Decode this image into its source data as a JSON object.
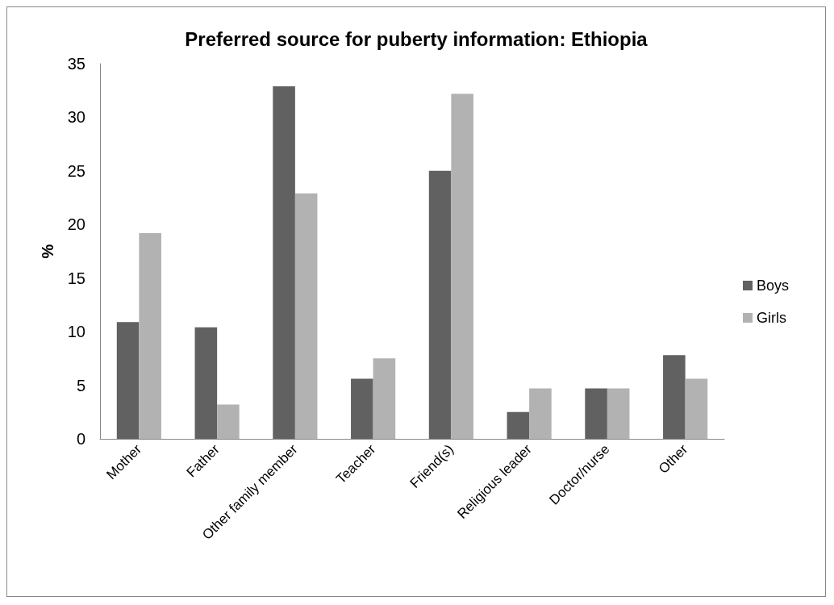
{
  "chart_data": {
    "type": "bar",
    "title": "Preferred source for puberty information: Ethiopia",
    "ylabel": "%",
    "categories": [
      "Mother",
      "Father",
      "Other family member",
      "Teacher",
      "Friend(s)",
      "Religious leader",
      "Doctor/nurse",
      "Other"
    ],
    "series": [
      {
        "name": "Boys",
        "color": "#616161",
        "values": [
          10.9,
          10.4,
          32.9,
          5.6,
          25.0,
          2.5,
          4.7,
          7.8
        ]
      },
      {
        "name": "Girls",
        "color": "#b2b2b2",
        "values": [
          19.2,
          3.2,
          22.9,
          7.5,
          32.2,
          4.7,
          4.7,
          5.6
        ]
      }
    ],
    "ylim": [
      0,
      35
    ],
    "yticks": [
      0,
      5,
      10,
      15,
      20,
      25,
      30,
      35
    ],
    "grid": false,
    "legend": "right"
  }
}
